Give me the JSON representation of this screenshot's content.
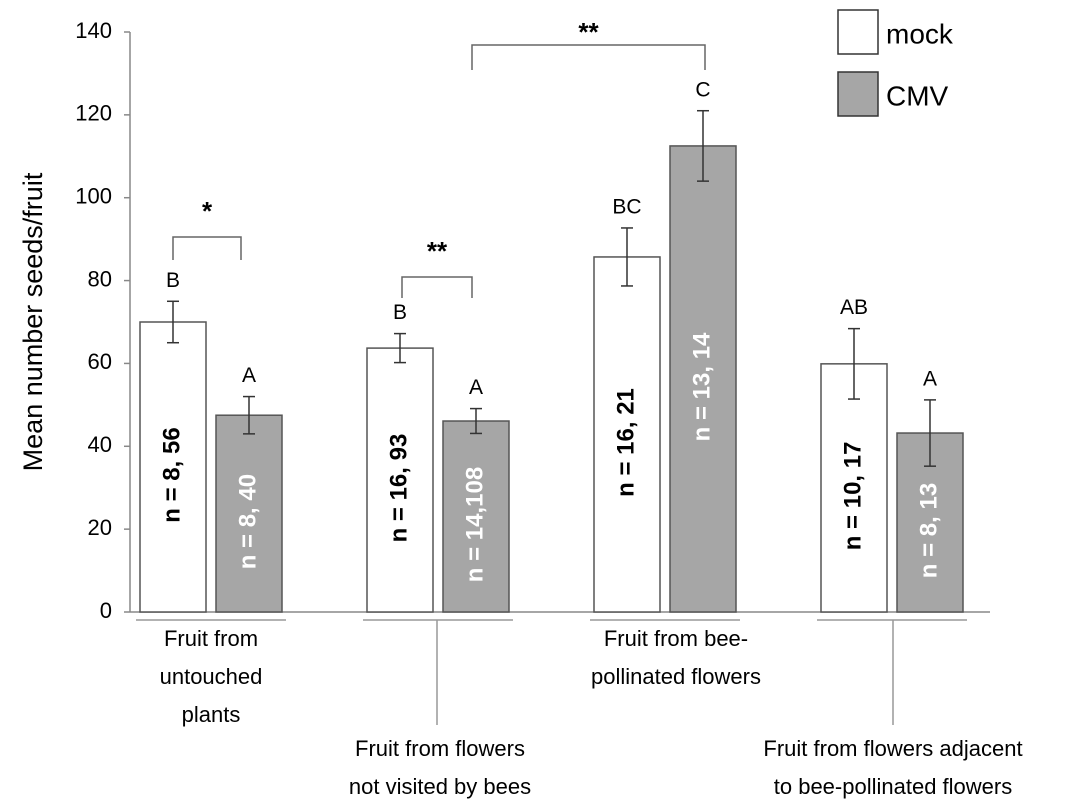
{
  "chart_data": {
    "type": "bar",
    "y_label": "Mean number seeds/fruit",
    "categories": [
      "Fruit from\nuntouched\nplants",
      "Fruit from flowers\nnot visited by bees",
      "Fruit from bee-\npollinated flowers",
      "Fruit from flowers adjacent\nto bee-pollinated flowers"
    ],
    "series": [
      {
        "name": "mock",
        "color": "#ffffff",
        "values": [
          70,
          63.7,
          85.7,
          59.9
        ],
        "errors": [
          5,
          3.5,
          7,
          8.5
        ],
        "letters": [
          "B",
          "B",
          "BC",
          "AB"
        ],
        "n_labels": [
          "n = 8, 56",
          "n = 16, 93",
          "n = 16, 21",
          "n = 10, 17"
        ]
      },
      {
        "name": "CMV",
        "color": "#a6a6a6",
        "values": [
          47.5,
          46.1,
          112.5,
          43.2
        ],
        "errors": [
          4.5,
          3,
          8.5,
          8
        ],
        "letters": [
          "A",
          "A",
          "C",
          "A"
        ],
        "n_labels": [
          "n = 8, 40",
          "n = 14,108",
          "n = 13, 14",
          "n = 8, 13"
        ]
      }
    ],
    "significance": [
      "*",
      "**",
      "**"
    ],
    "ylim": [
      0,
      140
    ],
    "yticks": [
      0,
      20,
      40,
      60,
      80,
      100,
      120,
      140
    ],
    "legend": "top-right"
  }
}
